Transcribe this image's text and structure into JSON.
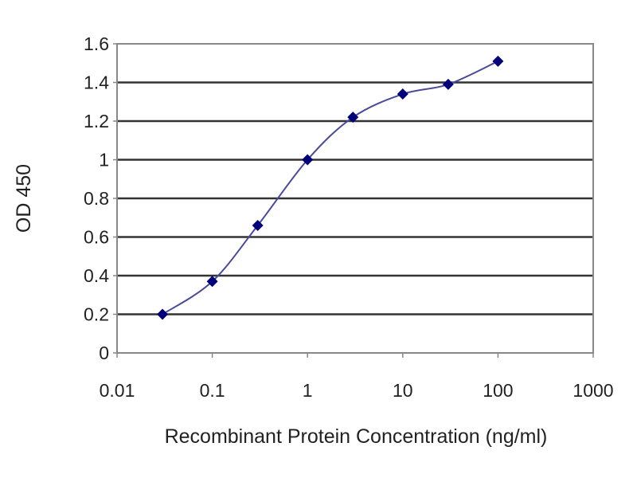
{
  "chart_data": {
    "type": "line",
    "title": "",
    "xlabel": "Recombinant Protein Concentration (ng/ml)",
    "ylabel": "OD 450",
    "x_scale": "log",
    "xlim": [
      0.01,
      1000
    ],
    "ylim": [
      0,
      1.6
    ],
    "x_ticks": [
      "0.01",
      "0.1",
      "1",
      "10",
      "100",
      "1000"
    ],
    "y_ticks": [
      "0",
      "0.2",
      "0.4",
      "0.6",
      "0.8",
      "1",
      "1.2",
      "1.4",
      "1.6"
    ],
    "grid": "horizontal",
    "legend": "none",
    "series": [
      {
        "x": [
          0.03,
          0.1,
          0.3,
          1,
          3,
          10,
          30,
          100
        ],
        "y": [
          0.2,
          0.37,
          0.66,
          1.0,
          1.22,
          1.34,
          1.39,
          1.51
        ],
        "color": "#00007a",
        "line_color": "#4a4a9a",
        "marker": "diamond",
        "smooth": true
      }
    ]
  }
}
